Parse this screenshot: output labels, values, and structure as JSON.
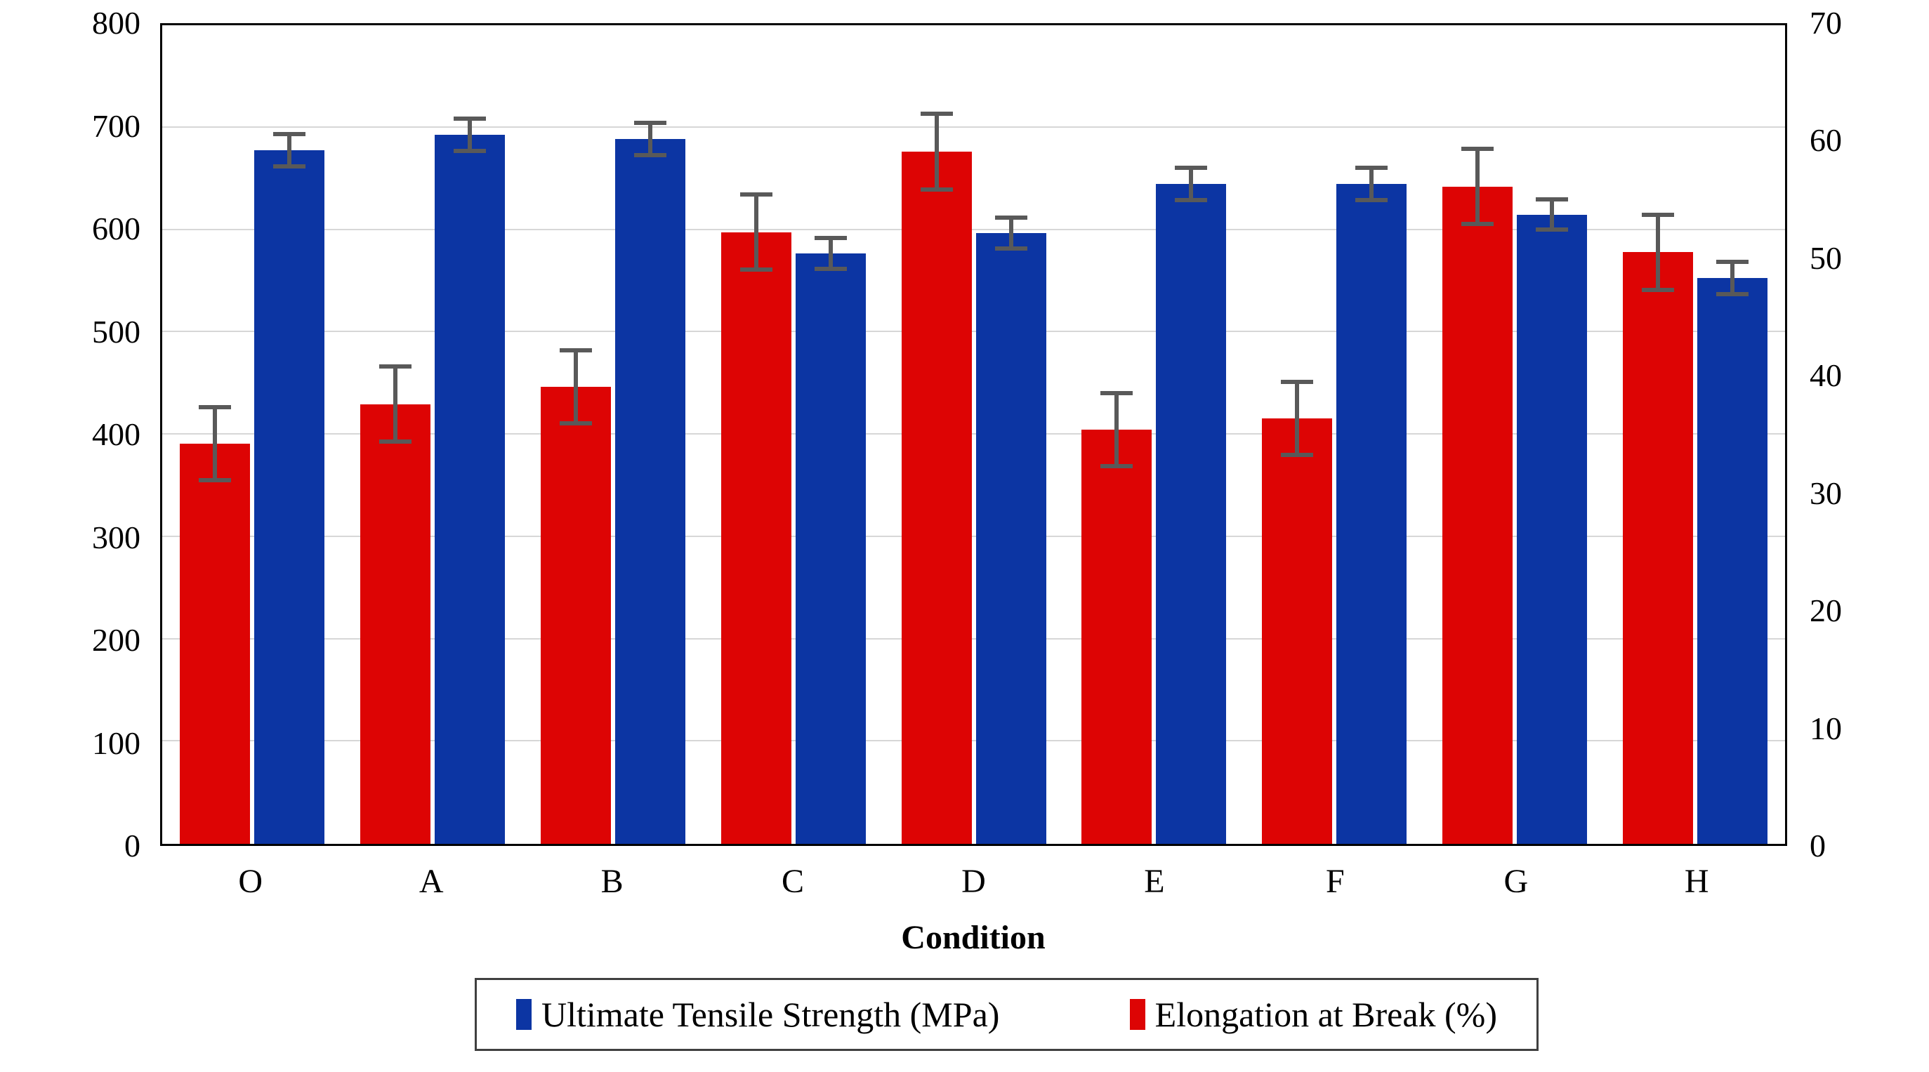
{
  "chart_data": {
    "type": "bar",
    "title": "",
    "categories": [
      "O",
      "A",
      "B",
      "C",
      "D",
      "E",
      "F",
      "G",
      "H"
    ],
    "series": [
      {
        "name": "Ultimate Tensile Strength (MPa)",
        "axis": "left",
        "color": "#0c35a3",
        "values": [
          678,
          693,
          689,
          577,
          597,
          645,
          645,
          615,
          553
        ],
        "errors": [
          18,
          18,
          18,
          17,
          17,
          18,
          18,
          17,
          18
        ]
      },
      {
        "name": "Elongation at Break (%)",
        "axis": "right",
        "color": "#dd0404",
        "values": [
          34.2,
          37.6,
          39.1,
          52.3,
          59.2,
          35.4,
          36.4,
          56.2,
          50.6
        ],
        "errors": [
          3.3,
          3.4,
          3.3,
          3.4,
          3.4,
          3.3,
          3.3,
          3.4,
          3.4
        ]
      }
    ],
    "left_axis": {
      "title": "Ultimate Tensile Strength (MPa)",
      "min": 0,
      "max": 800,
      "step": 100,
      "ticks": [
        0,
        100,
        200,
        300,
        400,
        500,
        600,
        700,
        800
      ]
    },
    "right_axis": {
      "title": "Elongation at Break (%)",
      "min": 0,
      "max": 70,
      "step": 10,
      "ticks": [
        0,
        10,
        20,
        30,
        40,
        50,
        60,
        70
      ]
    },
    "x_axis": {
      "title": "Condition"
    },
    "legend": {
      "position": "bottom",
      "entries": [
        {
          "label": "Ultimate Tensile Strength (MPa)",
          "color": "#0c35a3"
        },
        {
          "label": "Elongation at Break (%)",
          "color": "#dd0404"
        }
      ]
    },
    "grid": true,
    "gridline_color": "#d7d7d7",
    "error_bar_color": "#595959",
    "plot_border_color": "#000000"
  }
}
